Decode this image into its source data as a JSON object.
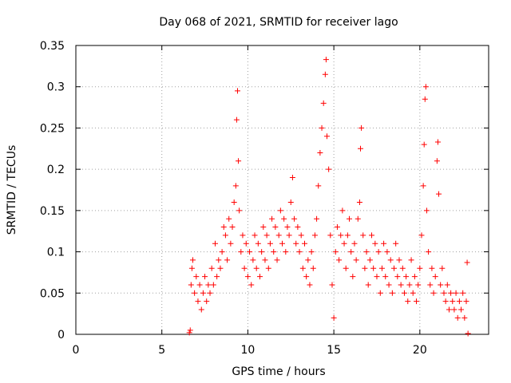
{
  "chart_data": {
    "type": "scatter",
    "title": "Day 068 of 2021, SRMTID for receiver lago",
    "xlabel": "GPS time / hours",
    "ylabel": "SRMTID / TECUs",
    "xlim": [
      0,
      24
    ],
    "ylim": [
      0,
      0.35
    ],
    "x_ticks": [
      0,
      5,
      10,
      15,
      20
    ],
    "x_tick_labels": [
      "0",
      "5",
      "10",
      "15",
      "20"
    ],
    "y_ticks": [
      0,
      0.05,
      0.1,
      0.15,
      0.2,
      0.25,
      0.3,
      0.35
    ],
    "y_tick_labels": [
      "0",
      "0.05",
      "0.1",
      "0.15",
      "0.2",
      "0.25",
      "0.3",
      "0.35"
    ],
    "grid": true,
    "marker": "+",
    "series_color": "#ff0000",
    "series": [
      {
        "name": "SRMTID",
        "points": [
          [
            6.6,
            0.002
          ],
          [
            6.65,
            0.005
          ],
          [
            6.7,
            0.06
          ],
          [
            6.75,
            0.08
          ],
          [
            6.8,
            0.09
          ],
          [
            6.9,
            0.05
          ],
          [
            7.0,
            0.07
          ],
          [
            7.1,
            0.04
          ],
          [
            7.2,
            0.06
          ],
          [
            7.3,
            0.03
          ],
          [
            7.4,
            0.05
          ],
          [
            7.5,
            0.07
          ],
          [
            7.6,
            0.04
          ],
          [
            7.7,
            0.06
          ],
          [
            7.8,
            0.05
          ],
          [
            7.9,
            0.08
          ],
          [
            8.0,
            0.06
          ],
          [
            8.1,
            0.11
          ],
          [
            8.2,
            0.07
          ],
          [
            8.3,
            0.09
          ],
          [
            8.4,
            0.08
          ],
          [
            8.5,
            0.1
          ],
          [
            8.6,
            0.13
          ],
          [
            8.7,
            0.12
          ],
          [
            8.8,
            0.09
          ],
          [
            8.9,
            0.14
          ],
          [
            9.0,
            0.11
          ],
          [
            9.1,
            0.13
          ],
          [
            9.2,
            0.16
          ],
          [
            9.3,
            0.18
          ],
          [
            9.35,
            0.26
          ],
          [
            9.4,
            0.295
          ],
          [
            9.45,
            0.21
          ],
          [
            9.5,
            0.15
          ],
          [
            9.6,
            0.1
          ],
          [
            9.7,
            0.12
          ],
          [
            9.8,
            0.08
          ],
          [
            9.9,
            0.11
          ],
          [
            10.0,
            0.07
          ],
          [
            10.1,
            0.1
          ],
          [
            10.2,
            0.06
          ],
          [
            10.3,
            0.09
          ],
          [
            10.4,
            0.12
          ],
          [
            10.5,
            0.08
          ],
          [
            10.6,
            0.11
          ],
          [
            10.7,
            0.07
          ],
          [
            10.8,
            0.1
          ],
          [
            10.9,
            0.13
          ],
          [
            11.0,
            0.09
          ],
          [
            11.1,
            0.12
          ],
          [
            11.2,
            0.08
          ],
          [
            11.3,
            0.11
          ],
          [
            11.4,
            0.14
          ],
          [
            11.5,
            0.1
          ],
          [
            11.6,
            0.13
          ],
          [
            11.7,
            0.09
          ],
          [
            11.8,
            0.12
          ],
          [
            11.9,
            0.15
          ],
          [
            12.0,
            0.11
          ],
          [
            12.1,
            0.14
          ],
          [
            12.2,
            0.1
          ],
          [
            12.3,
            0.13
          ],
          [
            12.4,
            0.12
          ],
          [
            12.5,
            0.16
          ],
          [
            12.6,
            0.19
          ],
          [
            12.7,
            0.14
          ],
          [
            12.8,
            0.11
          ],
          [
            12.9,
            0.13
          ],
          [
            13.0,
            0.1
          ],
          [
            13.1,
            0.12
          ],
          [
            13.2,
            0.08
          ],
          [
            13.3,
            0.11
          ],
          [
            13.4,
            0.07
          ],
          [
            13.5,
            0.09
          ],
          [
            13.6,
            0.06
          ],
          [
            13.7,
            0.1
          ],
          [
            13.8,
            0.08
          ],
          [
            13.9,
            0.12
          ],
          [
            14.0,
            0.14
          ],
          [
            14.1,
            0.18
          ],
          [
            14.2,
            0.22
          ],
          [
            14.3,
            0.25
          ],
          [
            14.4,
            0.28
          ],
          [
            14.5,
            0.315
          ],
          [
            14.55,
            0.333
          ],
          [
            14.6,
            0.24
          ],
          [
            14.7,
            0.2
          ],
          [
            14.8,
            0.12
          ],
          [
            14.9,
            0.06
          ],
          [
            15.0,
            0.02
          ],
          [
            15.1,
            0.1
          ],
          [
            15.2,
            0.13
          ],
          [
            15.3,
            0.09
          ],
          [
            15.4,
            0.12
          ],
          [
            15.5,
            0.15
          ],
          [
            15.6,
            0.11
          ],
          [
            15.7,
            0.08
          ],
          [
            15.8,
            0.12
          ],
          [
            15.9,
            0.14
          ],
          [
            16.0,
            0.1
          ],
          [
            16.1,
            0.07
          ],
          [
            16.2,
            0.11
          ],
          [
            16.3,
            0.09
          ],
          [
            16.4,
            0.14
          ],
          [
            16.5,
            0.16
          ],
          [
            16.55,
            0.225
          ],
          [
            16.6,
            0.25
          ],
          [
            16.7,
            0.12
          ],
          [
            16.8,
            0.08
          ],
          [
            16.9,
            0.1
          ],
          [
            17.0,
            0.06
          ],
          [
            17.1,
            0.09
          ],
          [
            17.2,
            0.12
          ],
          [
            17.3,
            0.08
          ],
          [
            17.4,
            0.11
          ],
          [
            17.5,
            0.07
          ],
          [
            17.6,
            0.1
          ],
          [
            17.7,
            0.05
          ],
          [
            17.8,
            0.08
          ],
          [
            17.9,
            0.11
          ],
          [
            18.0,
            0.07
          ],
          [
            18.1,
            0.1
          ],
          [
            18.2,
            0.06
          ],
          [
            18.3,
            0.09
          ],
          [
            18.4,
            0.05
          ],
          [
            18.5,
            0.08
          ],
          [
            18.6,
            0.11
          ],
          [
            18.7,
            0.07
          ],
          [
            18.8,
            0.09
          ],
          [
            18.9,
            0.06
          ],
          [
            19.0,
            0.08
          ],
          [
            19.1,
            0.05
          ],
          [
            19.2,
            0.07
          ],
          [
            19.3,
            0.04
          ],
          [
            19.4,
            0.06
          ],
          [
            19.5,
            0.09
          ],
          [
            19.6,
            0.05
          ],
          [
            19.7,
            0.07
          ],
          [
            19.8,
            0.04
          ],
          [
            19.9,
            0.06
          ],
          [
            20.0,
            0.08
          ],
          [
            20.1,
            0.12
          ],
          [
            20.2,
            0.18
          ],
          [
            20.25,
            0.23
          ],
          [
            20.3,
            0.285
          ],
          [
            20.35,
            0.3
          ],
          [
            20.4,
            0.15
          ],
          [
            20.5,
            0.1
          ],
          [
            20.6,
            0.06
          ],
          [
            20.7,
            0.08
          ],
          [
            20.8,
            0.05
          ],
          [
            20.9,
            0.07
          ],
          [
            21.0,
            0.21
          ],
          [
            21.05,
            0.233
          ],
          [
            21.1,
            0.17
          ],
          [
            21.2,
            0.06
          ],
          [
            21.3,
            0.08
          ],
          [
            21.4,
            0.05
          ],
          [
            21.5,
            0.04
          ],
          [
            21.6,
            0.06
          ],
          [
            21.7,
            0.03
          ],
          [
            21.8,
            0.05
          ],
          [
            21.9,
            0.04
          ],
          [
            22.0,
            0.03
          ],
          [
            22.1,
            0.05
          ],
          [
            22.2,
            0.02
          ],
          [
            22.3,
            0.04
          ],
          [
            22.4,
            0.03
          ],
          [
            22.5,
            0.05
          ],
          [
            22.6,
            0.02
          ],
          [
            22.7,
            0.04
          ],
          [
            22.75,
            0.087
          ],
          [
            22.8,
            0.001
          ]
        ]
      }
    ]
  }
}
